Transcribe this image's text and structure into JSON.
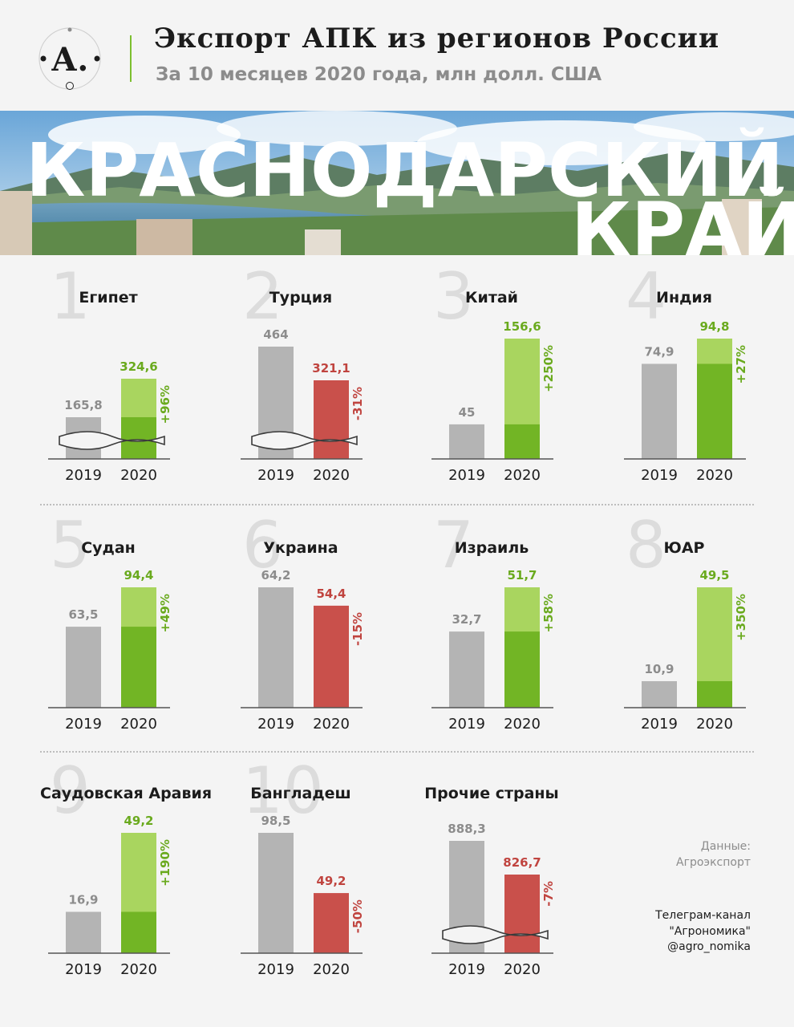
{
  "header": {
    "title": "Экспорт АПК из регионов России",
    "subtitle": "За 10 месяцев 2020 года, млн долл. США"
  },
  "logo": {
    "letter": "А.",
    "icon": "agronomika-logo-icon"
  },
  "banner": {
    "line1": "КРАСНОДАРСКИЙ",
    "line2": "КРАЙ"
  },
  "footer": {
    "source_line1": "Данные:",
    "source_line2": "Агроэкспорт",
    "channel_line1": "Телеграм-канал",
    "channel_line2": "\"Агрономика\"",
    "channel_line3": "@agro_nomika"
  },
  "colors": {
    "grey": "#b4b4b4",
    "green_dark": "#72b525",
    "green_light": "#a9d55f",
    "red": "#c9504b",
    "green_text": "#6aaa1e",
    "red_text": "#c0443f"
  },
  "chart_data": {
    "type": "bar",
    "unit": "млн долл. США",
    "categories": [
      "2019",
      "2020"
    ],
    "panels": [
      {
        "rank": "1",
        "country": "Египет",
        "v2019": 165.8,
        "v2020": 324.6,
        "label2019": "165,8",
        "label2020": "324,6",
        "change": "+96%",
        "trend": "up",
        "broken": true
      },
      {
        "rank": "2",
        "country": "Турция",
        "v2019": 464,
        "v2020": 321.1,
        "label2019": "464",
        "label2020": "321,1",
        "change": "-31%",
        "trend": "down",
        "broken": true
      },
      {
        "rank": "3",
        "country": "Китай",
        "v2019": 45,
        "v2020": 156.6,
        "label2019": "45",
        "label2020": "156,6",
        "change": "+250%",
        "trend": "up",
        "broken": false
      },
      {
        "rank": "4",
        "country": "Индия",
        "v2019": 74.9,
        "v2020": 94.8,
        "label2019": "74,9",
        "label2020": "94,8",
        "change": "+27%",
        "trend": "up",
        "broken": false
      },
      {
        "rank": "5",
        "country": "Судан",
        "v2019": 63.5,
        "v2020": 94.4,
        "label2019": "63,5",
        "label2020": "94,4",
        "change": "+49%",
        "trend": "up",
        "broken": false
      },
      {
        "rank": "6",
        "country": "Украина",
        "v2019": 64.2,
        "v2020": 54.4,
        "label2019": "64,2",
        "label2020": "54,4",
        "change": "-15%",
        "trend": "down",
        "broken": false
      },
      {
        "rank": "7",
        "country": "Израиль",
        "v2019": 32.7,
        "v2020": 51.7,
        "label2019": "32,7",
        "label2020": "51,7",
        "change": "+58%",
        "trend": "up",
        "broken": false
      },
      {
        "rank": "8",
        "country": "ЮАР",
        "v2019": 10.9,
        "v2020": 49.5,
        "label2019": "10,9",
        "label2020": "49,5",
        "change": "+350%",
        "trend": "up",
        "broken": false
      },
      {
        "rank": "9",
        "country": "Саудовская Аравия",
        "v2019": 16.9,
        "v2020": 49.2,
        "label2019": "16,9",
        "label2020": "49,2",
        "change": "+190%",
        "trend": "up",
        "broken": false
      },
      {
        "rank": "10",
        "country": "Бангладеш",
        "v2019": 98.5,
        "v2020": 49.2,
        "label2019": "98,5",
        "label2020": "49,2",
        "change": "-50%",
        "trend": "down",
        "broken": false
      },
      {
        "rank": "",
        "country": "Прочие страны",
        "v2019": 888.3,
        "v2020": 826.7,
        "label2019": "888,3",
        "label2020": "826,7",
        "change": "-7%",
        "trend": "down",
        "broken": true
      }
    ]
  }
}
